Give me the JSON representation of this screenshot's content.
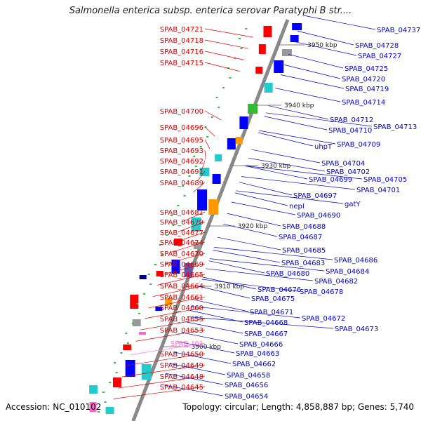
{
  "title": "Salmonella enterica subsp. enterica serovar Paratyphi B str....",
  "accession": "Accession: NC_010102",
  "topology": "Topology: circular; Length: 4,858,887 bp; Genes: 5,740",
  "colors": {
    "left_label": "#dd0000",
    "right_label": "#0000cc",
    "trna_label": "#ff77cc",
    "backbone": "#888888",
    "cds_forward": "#ff0000",
    "cds_reverse": "#0000ff",
    "rna": "#ff66cc",
    "cog_cyan": "#22cccc",
    "cog_orange": "#ff9900",
    "cog_green": "#33bb33",
    "cog_purple": "#6655aa",
    "cog_gray": "#999999",
    "cog_navy": "#000088"
  },
  "scale_marks": [
    "3950 kbp",
    "3940 kbp",
    "3930 kbp",
    "3920 kbp",
    "3910 kbp",
    "3900 kbp"
  ],
  "left_labels": [
    {
      "text": "SPAB_04721",
      "type": "cds"
    },
    {
      "text": "SPAB_04718",
      "type": "cds"
    },
    {
      "text": "SPAB_04716",
      "type": "cds"
    },
    {
      "text": "SPAB_04715",
      "type": "cds"
    },
    {
      "text": "SPAB_04700",
      "type": "cds"
    },
    {
      "text": "SPAB_04696",
      "type": "cds"
    },
    {
      "text": "SPAB_04695",
      "type": "cds"
    },
    {
      "text": "SPAB_04693",
      "type": "cds"
    },
    {
      "text": "SPAB_04692",
      "type": "cds"
    },
    {
      "text": "SPAB_04691",
      "type": "cds"
    },
    {
      "text": "SPAB_04689",
      "type": "cds"
    },
    {
      "text": "SPAB_04681",
      "type": "cds"
    },
    {
      "text": "SPAB_04679",
      "type": "cds"
    },
    {
      "text": "SPAB_04677",
      "type": "cds"
    },
    {
      "text": "SPAB_04674",
      "type": "cds"
    },
    {
      "text": "SPAB_04670",
      "type": "cds"
    },
    {
      "text": "SPAB_04669",
      "type": "cds"
    },
    {
      "text": "SPAB_04665",
      "type": "cds"
    },
    {
      "text": "SPAB_04664",
      "type": "cds"
    },
    {
      "text": "SPAB_04661",
      "type": "cds"
    },
    {
      "text": "SPAB_04660",
      "type": "cds"
    },
    {
      "text": "SPAB_04655",
      "type": "cds"
    },
    {
      "text": "SPAB_04653",
      "type": "cds"
    },
    {
      "text": "SPAB_t01",
      "type": "trna"
    },
    {
      "text": "SPAB_04650",
      "type": "cds"
    },
    {
      "text": "SPAB_04649",
      "type": "cds"
    },
    {
      "text": "SPAB_04648",
      "type": "cds"
    },
    {
      "text": "SPAB_04645",
      "type": "cds"
    }
  ],
  "right_labels": [
    {
      "text": "SPAB_04737"
    },
    {
      "text": "SPAB_04728"
    },
    {
      "text": "SPAB_04727"
    },
    {
      "text": "SPAB_04725"
    },
    {
      "text": "SPAB_04720"
    },
    {
      "text": "SPAB_04719"
    },
    {
      "text": "SPAB_04714"
    },
    {
      "text": "SPAB_04712"
    },
    {
      "text": "SPAB_04713"
    },
    {
      "text": "SPAB_04710"
    },
    {
      "text": "uhpT"
    },
    {
      "text": "SPAB_04709"
    },
    {
      "text": "SPAB_04704"
    },
    {
      "text": "SPAB_04702"
    },
    {
      "text": "SPAB_04705"
    },
    {
      "text": "SPAB_04699"
    },
    {
      "text": "SPAB_04701"
    },
    {
      "text": "SPAB_04697"
    },
    {
      "text": "gatY"
    },
    {
      "text": "nepI"
    },
    {
      "text": "SPAB_04690"
    },
    {
      "text": "SPAB_04688"
    },
    {
      "text": "SPAB_04687"
    },
    {
      "text": "SPAB_04685"
    },
    {
      "text": "SPAB_04686"
    },
    {
      "text": "SPAB_04683"
    },
    {
      "text": "SPAB_04684"
    },
    {
      "text": "SPAB_04680"
    },
    {
      "text": "SPAB_04682"
    },
    {
      "text": "SPAB_04676"
    },
    {
      "text": "SPAB_04678"
    },
    {
      "text": "SPAB_04675"
    },
    {
      "text": "SPAB_04671"
    },
    {
      "text": "SPAB_04672"
    },
    {
      "text": "SPAB_04668"
    },
    {
      "text": "SPAB_04673"
    },
    {
      "text": "SPAB_04667"
    },
    {
      "text": "SPAB_04666"
    },
    {
      "text": "SPAB_04663"
    },
    {
      "text": "SPAB_04662"
    },
    {
      "text": "SPAB_04658"
    },
    {
      "text": "SPAB_04656"
    },
    {
      "text": "SPAB_04654"
    }
  ]
}
